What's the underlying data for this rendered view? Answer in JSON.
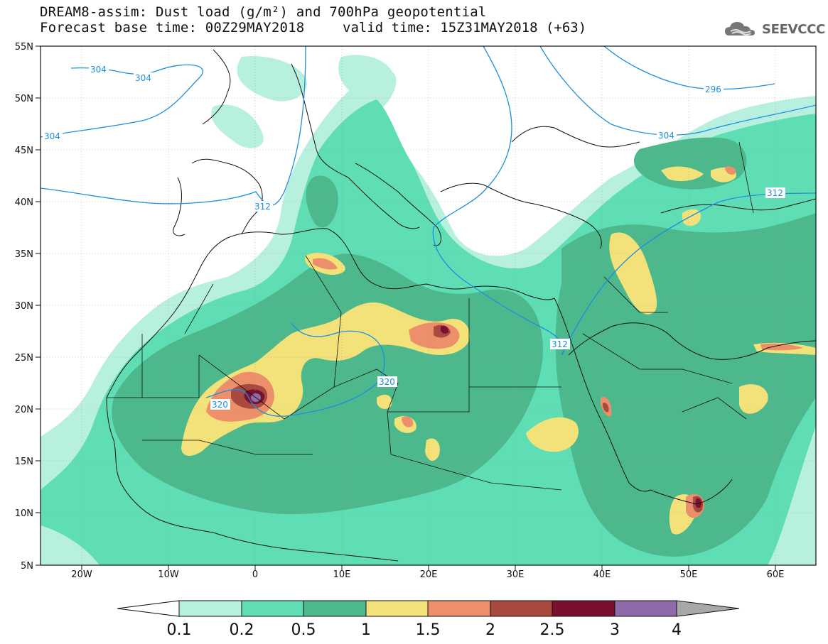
{
  "header": {
    "title_line1": "DREAM8-assim: Dust load (g/m²) and 700hPa geopotential",
    "title_line2": "Forecast base time: 00Z29MAY2018",
    "valid_time": "valid time: 15Z31MAY2018 (+63)",
    "logo_text": "SEEVCCC",
    "logo_icon": "cloud-icon"
  },
  "axes": {
    "lat_labels": [
      "55N",
      "50N",
      "45N",
      "40N",
      "35N",
      "30N",
      "25N",
      "20N",
      "15N",
      "10N",
      "5N"
    ],
    "lon_labels": [
      "20W",
      "10W",
      "0",
      "10E",
      "20E",
      "30E",
      "40E",
      "50E",
      "60E"
    ]
  },
  "colorbar": {
    "labels": [
      "0.1",
      "0.2",
      "0.5",
      "1",
      "1.5",
      "2",
      "2.5",
      "3",
      "4"
    ],
    "colors": [
      "#b8f0e0",
      "#5fddb4",
      "#4cb88c",
      "#f3e27a",
      "#ec8f6a",
      "#a84a3f",
      "#7a1030",
      "#8e6aa8",
      "#a8a8a8"
    ]
  },
  "contours": {
    "color": "#1b8fe0",
    "labels": [
      "304",
      "304",
      "304",
      "312",
      "296",
      "304",
      "312",
      "312",
      "320",
      "320"
    ]
  },
  "colors": {
    "sea": "#ffffff",
    "coast": "#111111",
    "background_dust": "#5fddb4"
  }
}
